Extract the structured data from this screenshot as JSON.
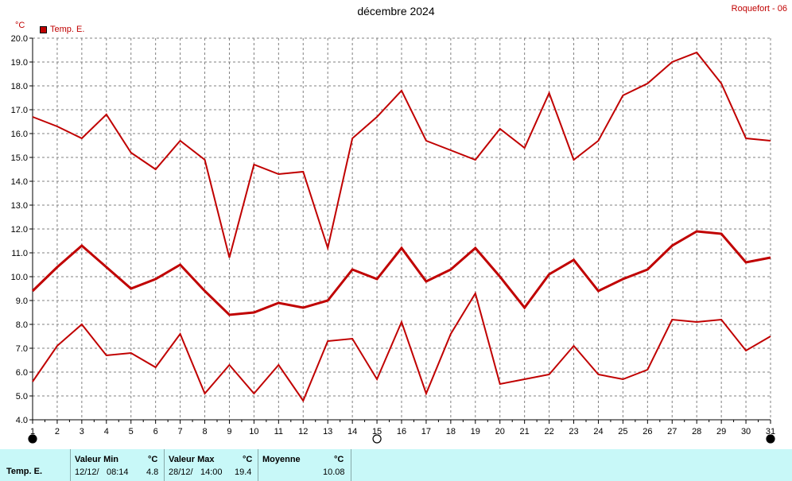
{
  "header": {
    "title": "décembre 2024",
    "station": "Roquefort - 06",
    "unit": "°C",
    "legend_label": "Temp. E."
  },
  "colors": {
    "series": "#c00000",
    "grid": "#808080",
    "stats_bg": "#c8f8f8"
  },
  "chart_data": {
    "type": "line",
    "title": "décembre 2024",
    "ylabel": "°C",
    "ylim": [
      4.0,
      20.0
    ],
    "ytick_step": 1.0,
    "x": [
      1,
      2,
      3,
      4,
      5,
      6,
      7,
      8,
      9,
      10,
      11,
      12,
      13,
      14,
      15,
      16,
      17,
      18,
      19,
      20,
      21,
      22,
      23,
      24,
      25,
      26,
      27,
      28,
      29,
      30,
      31
    ],
    "grid": true,
    "legend": "top-left",
    "series": [
      {
        "name": "Temp. E.",
        "role": "max",
        "values": [
          16.7,
          16.3,
          15.8,
          16.8,
          15.2,
          14.5,
          15.7,
          14.9,
          10.8,
          14.7,
          14.3,
          14.4,
          11.2,
          15.8,
          16.7,
          17.8,
          15.7,
          15.3,
          14.9,
          16.2,
          15.4,
          17.7,
          14.9,
          15.7,
          17.6,
          18.1,
          19.0,
          19.4,
          18.1,
          15.8,
          15.7
        ]
      },
      {
        "name": "Temp. E.",
        "role": "mean",
        "values": [
          9.4,
          10.4,
          11.3,
          10.4,
          9.5,
          9.9,
          10.5,
          9.4,
          8.4,
          8.5,
          8.9,
          8.7,
          9.0,
          10.3,
          9.9,
          11.2,
          9.8,
          10.3,
          11.2,
          10.0,
          8.7,
          10.1,
          10.7,
          9.4,
          9.9,
          10.3,
          11.3,
          11.9,
          11.8,
          10.6,
          10.8
        ]
      },
      {
        "name": "Temp. E.",
        "role": "min",
        "values": [
          5.6,
          7.1,
          8.0,
          6.7,
          6.8,
          6.2,
          7.6,
          5.1,
          6.3,
          5.1,
          6.3,
          4.8,
          7.3,
          7.4,
          5.7,
          8.1,
          5.1,
          7.6,
          9.3,
          5.5,
          5.7,
          5.9,
          7.1,
          5.9,
          5.7,
          6.1,
          8.2,
          8.1,
          8.2,
          6.9,
          7.5
        ]
      }
    ],
    "moon_markers": [
      {
        "day": 1,
        "phase": "new"
      },
      {
        "day": 15,
        "phase": "full"
      },
      {
        "day": 31,
        "phase": "new"
      }
    ]
  },
  "stats": {
    "row_label": "Temp. E.",
    "min": {
      "header": "Valeur Min",
      "unit": "°C",
      "date": "12/12/",
      "time": "08:14",
      "value": "4.8"
    },
    "max": {
      "header": "Valeur Max",
      "unit": "°C",
      "date": "28/12/",
      "time": "14:00",
      "value": "19.4"
    },
    "mean": {
      "header": "Moyenne",
      "unit": "°C",
      "value": "10.08"
    }
  }
}
